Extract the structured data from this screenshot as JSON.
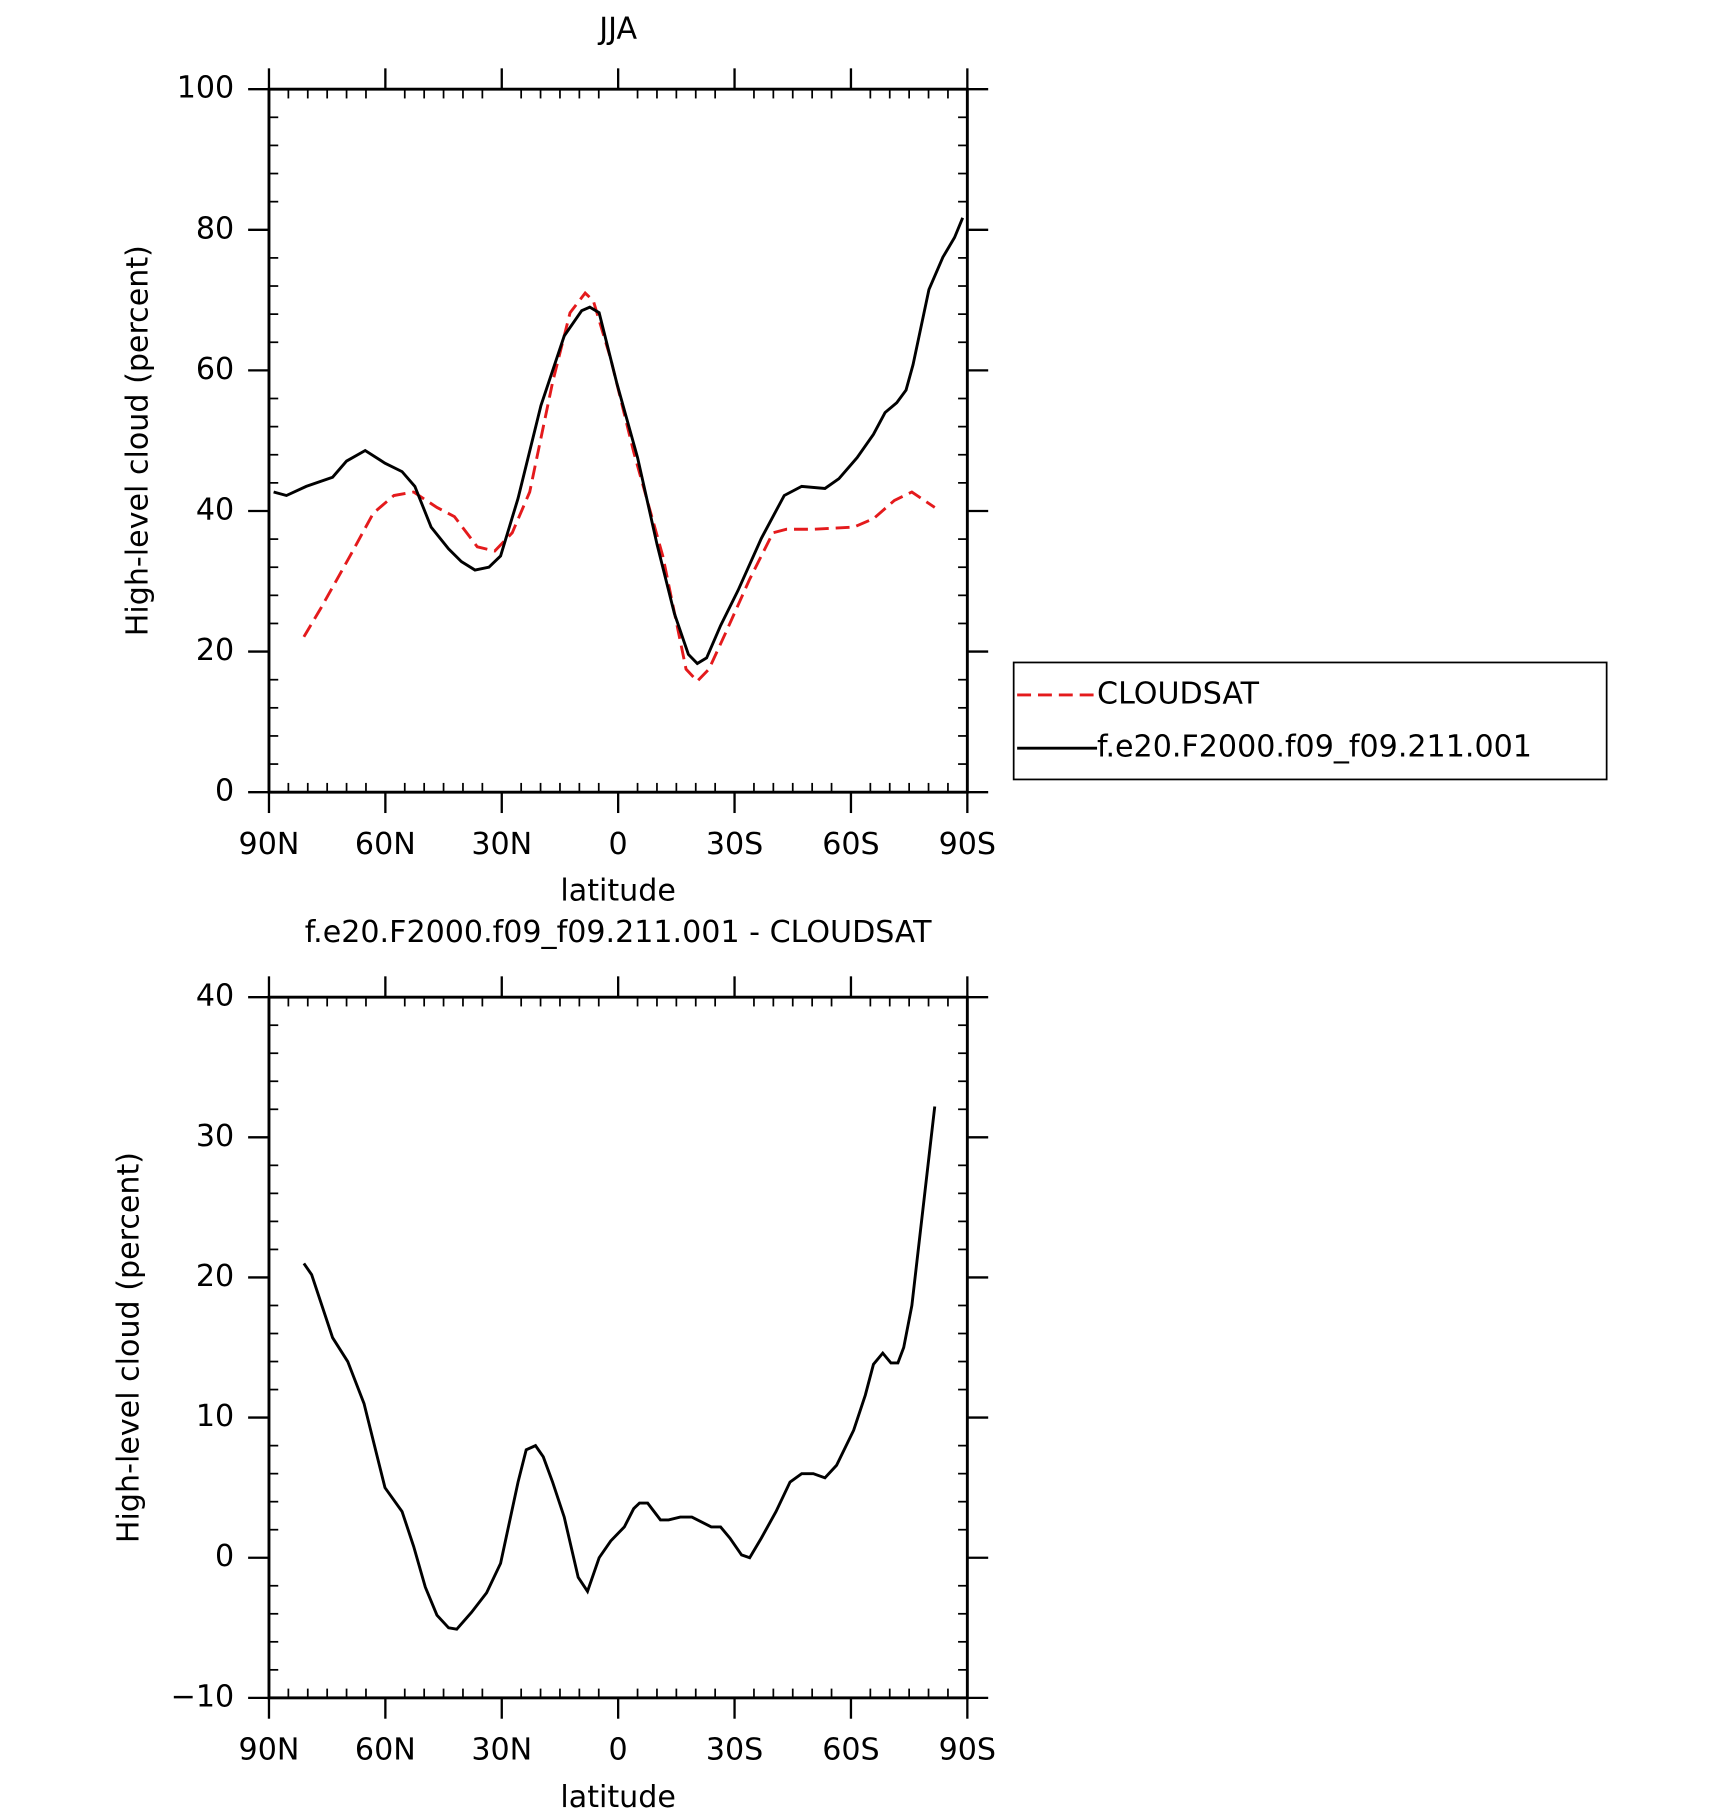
{
  "chart_data": [
    {
      "type": "line",
      "title": "JJA",
      "xlabel": "latitude",
      "ylabel": "High-level cloud (percent)",
      "xlim": [
        90,
        -90
      ],
      "xticks": [
        {
          "value": 90,
          "label": "90N"
        },
        {
          "value": 60,
          "label": "60N"
        },
        {
          "value": 30,
          "label": "30N"
        },
        0,
        {
          "value": -30,
          "label": "30S"
        },
        {
          "value": -60,
          "label": "60S"
        },
        {
          "value": -90,
          "label": "90S"
        }
      ],
      "xminorticks": [
        85,
        80,
        75,
        70,
        65,
        55,
        50,
        45,
        40,
        35,
        25,
        20,
        15,
        10,
        5,
        -5,
        -10,
        -15,
        -20,
        -25,
        -35,
        -40,
        -45,
        -50,
        -55,
        -65,
        -70,
        -75,
        -80,
        -85
      ],
      "ylim": [
        0,
        100
      ],
      "yticks": [
        0,
        20,
        40,
        60,
        80,
        100
      ],
      "yminorticks": [
        4,
        8,
        12,
        16,
        24,
        28,
        32,
        36,
        44,
        48,
        52,
        56,
        64,
        68,
        72,
        76,
        84,
        88,
        92,
        96
      ],
      "legend": "right",
      "series": [
        {
          "name": "CLOUDSAT",
          "color": "#e41a1c",
          "linestyle": "dashed",
          "x": [
            81,
            76.6,
            69.1,
            63.1,
            57.8,
            52.7,
            46.7,
            42.2,
            36.3,
            31.8,
            27.3,
            22.8,
            16.9,
            12.4,
            8.5,
            6.4,
            1.9,
            -4,
            -11.5,
            -17.5,
            -20.4,
            -23.4,
            -27.9,
            -33.9,
            -39.9,
            -43.4,
            -50.3,
            -60.7,
            -65.8,
            -71.2,
            -75.7,
            -81.6
          ],
          "values": [
            22.1,
            26.2,
            33.6,
            39.7,
            42.2,
            42.7,
            40.5,
            39.2,
            34.9,
            34.3,
            36.9,
            42.7,
            58.3,
            68.2,
            71,
            69.9,
            61.6,
            48.4,
            33.6,
            17.5,
            15.8,
            17.5,
            22.9,
            30.3,
            36.9,
            37.4,
            37.4,
            37.7,
            38.9,
            41.5,
            42.7,
            40.5
          ]
        },
        {
          "name": "f.e20.F2000.f09_f09.211.001",
          "color": "#000000",
          "linestyle": "solid",
          "x": [
            88.8,
            85.5,
            80.4,
            73.6,
            70,
            65.2,
            60.1,
            55.7,
            52.4,
            48.2,
            43.7,
            40.4,
            36.9,
            33.3,
            30.3,
            25.8,
            19.9,
            13.9,
            9.4,
            7.3,
            4.9,
            0.4,
            -5,
            -10,
            -14.5,
            -18.1,
            -20.4,
            -22.8,
            -26.4,
            -30.9,
            -36.9,
            -42.8,
            -47.3,
            -53.3,
            -56.9,
            -61.6,
            -65.8,
            -68.8,
            -71.8,
            -74.2,
            -76,
            -80.1,
            -83.7,
            -86.7,
            -88.8
          ],
          "values": [
            42.7,
            42.2,
            43.5,
            44.8,
            47.1,
            48.6,
            46.8,
            45.6,
            43.5,
            37.7,
            34.6,
            32.8,
            31.6,
            32,
            33.6,
            41.8,
            55,
            64.9,
            68.5,
            69,
            68.2,
            58.3,
            47.6,
            35.3,
            25.4,
            19.6,
            18.3,
            19.1,
            23.7,
            28.7,
            36.1,
            42.2,
            43.5,
            43.2,
            44.6,
            47.6,
            50.9,
            54,
            55.4,
            57.2,
            60.8,
            71.5,
            76.1,
            78.9,
            81.7
          ]
        }
      ]
    },
    {
      "type": "line",
      "title": "f.e20.F2000.f09_f09.211.001 - CLOUDSAT",
      "xlabel": "latitude",
      "ylabel": "High-level cloud (percent)",
      "xlim": [
        90,
        -90
      ],
      "xticks": [
        {
          "value": 90,
          "label": "90N"
        },
        {
          "value": 60,
          "label": "60N"
        },
        {
          "value": 30,
          "label": "30N"
        },
        0,
        {
          "value": -30,
          "label": "30S"
        },
        {
          "value": -60,
          "label": "60S"
        },
        {
          "value": -90,
          "label": "90S"
        }
      ],
      "xminorticks": [
        85,
        80,
        75,
        70,
        65,
        55,
        50,
        45,
        40,
        35,
        25,
        20,
        15,
        10,
        5,
        -5,
        -10,
        -15,
        -20,
        -25,
        -35,
        -40,
        -45,
        -50,
        -55,
        -65,
        -70,
        -75,
        -80,
        -85
      ],
      "ylim": [
        -10,
        40
      ],
      "yticks": [
        {
          "value": -10,
          "label": "−10"
        },
        0,
        10,
        20,
        30,
        40
      ],
      "yminorticks": [
        -8,
        -6,
        -4,
        -2,
        2,
        4,
        6,
        8,
        12,
        14,
        16,
        18,
        22,
        24,
        26,
        28,
        32,
        34,
        36,
        38
      ],
      "series": [
        {
          "color": "#000000",
          "linestyle": "solid",
          "x": [
            81,
            79,
            73.6,
            69.7,
            65.5,
            60.1,
            55.7,
            52.7,
            49.7,
            46.7,
            43.7,
            41.6,
            37.8,
            33.9,
            30.3,
            25.8,
            23.7,
            21.3,
            19.3,
            16.9,
            13.9,
            10.3,
            7.9,
            4.9,
            1.9,
            -1.6,
            -4,
            -5.5,
            -7.6,
            -10.9,
            -13,
            -16,
            -19,
            -24,
            -26.4,
            -28.8,
            -31.8,
            -33.9,
            -36.9,
            -40.7,
            -44.3,
            -47.3,
            -50.3,
            -53.3,
            -56.3,
            -60.7,
            -63.7,
            -65.8,
            -68.2,
            -70.3,
            -72.1,
            -73.6,
            -75.7,
            -81.6
          ],
          "values": [
            21,
            20.2,
            15.7,
            14,
            11,
            5,
            3.3,
            0.8,
            -2.1,
            -4.1,
            -5,
            -5.1,
            -3.9,
            -2.5,
            -0.4,
            5.4,
            7.7,
            8,
            7.2,
            5.4,
            2.9,
            -1.4,
            -2.4,
            0,
            1.2,
            2.2,
            3.5,
            3.9,
            3.9,
            2.7,
            2.7,
            2.9,
            2.9,
            2.2,
            2.2,
            1.4,
            0.2,
            0,
            1.4,
            3.3,
            5.4,
            6,
            6,
            5.7,
            6.6,
            9.1,
            11.6,
            13.8,
            14.6,
            13.9,
            13.9,
            15,
            18,
            32.2
          ]
        }
      ]
    }
  ]
}
